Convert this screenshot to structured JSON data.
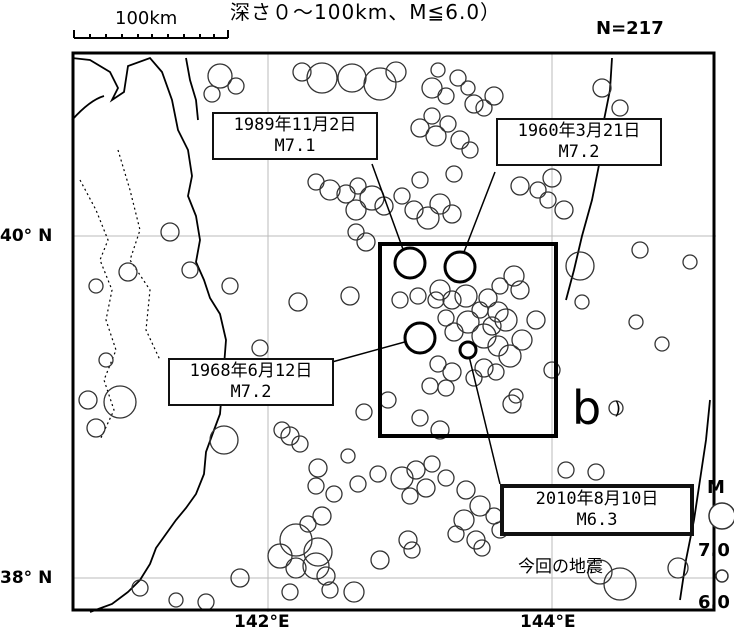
{
  "map": {
    "title": "深さ０～100km、M≦6.0）",
    "scale_label": "100km",
    "count_label": "N=217",
    "lat_labels": [
      "40° N",
      "38° N"
    ],
    "lon_labels": [
      "142°E",
      "144°E"
    ],
    "region_label": "b",
    "region_suffix": ")",
    "caption": "今回の地震"
  },
  "annotations": [
    {
      "date": "1989年11月2日",
      "mag": "M7.1"
    },
    {
      "date": "1960年3月21日",
      "mag": "M7.2"
    },
    {
      "date": "1968年6月12日",
      "mag": "M7.2"
    },
    {
      "date": "2010年8月10日",
      "mag": "M6.3"
    }
  ],
  "legend": {
    "title": "M",
    "values": [
      "7.0",
      "6.0"
    ]
  },
  "colors": {
    "frame": "#000000",
    "coast": "#000000",
    "grid": "#bbbbbb",
    "circle": "#333333"
  }
}
